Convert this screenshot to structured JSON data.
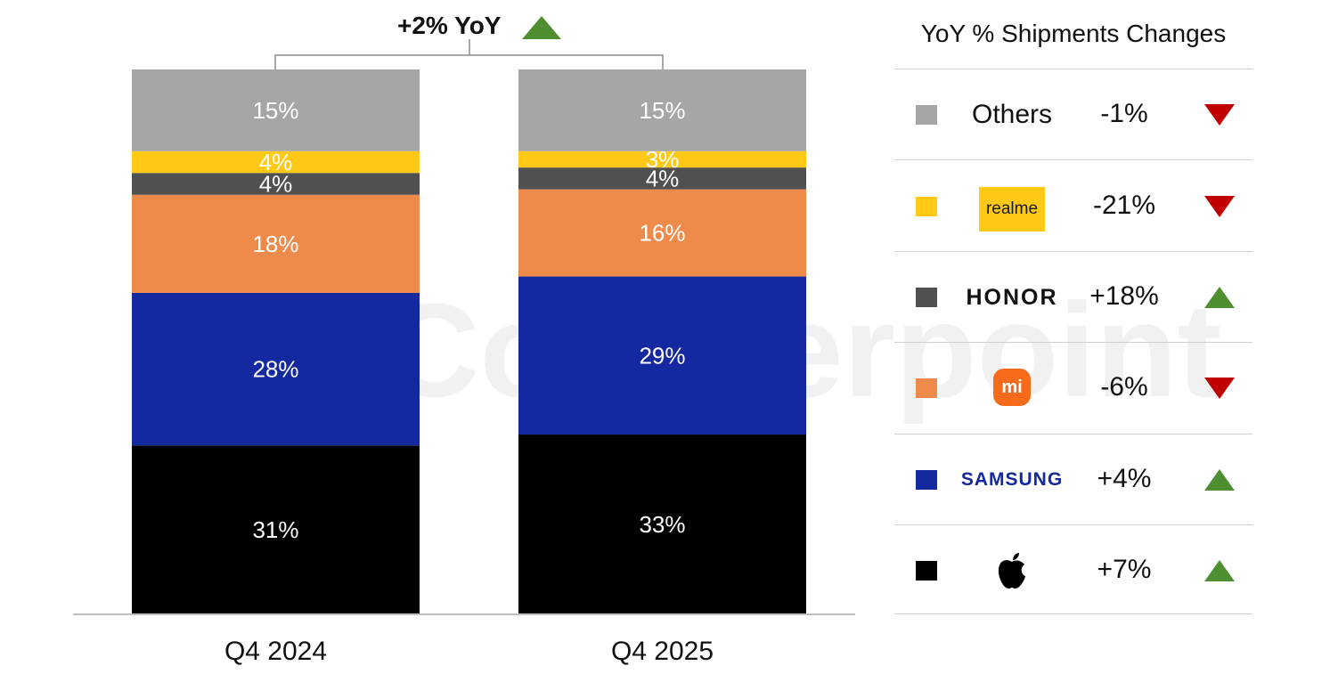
{
  "watermark": "Counterpoint",
  "yoy_total": {
    "text": "+2% YoY",
    "direction": "up"
  },
  "chart_data": {
    "type": "bar",
    "stacked": true,
    "categories": [
      "Q4 2024",
      "Q4 2025"
    ],
    "ylim": [
      0,
      100
    ],
    "series": [
      {
        "key": "apple",
        "values": [
          31,
          33
        ],
        "color": "#000000"
      },
      {
        "key": "samsung",
        "values": [
          28,
          29
        ],
        "color": "#1428A0"
      },
      {
        "key": "xiaomi",
        "values": [
          18,
          16
        ],
        "color": "#EE8B4B"
      },
      {
        "key": "honor",
        "values": [
          4,
          4
        ],
        "color": "#505050"
      },
      {
        "key": "realme",
        "values": [
          4,
          3
        ],
        "color": "#FFC915"
      },
      {
        "name": "Others",
        "values": [
          15,
          15
        ],
        "color": "#A6A6A6"
      }
    ],
    "labels": [
      [
        "31%",
        "28%",
        "18%",
        "4%",
        "4%",
        "15%"
      ],
      [
        "33%",
        "29%",
        "16%",
        "4%",
        "3%",
        "15%"
      ]
    ],
    "grid": false
  },
  "legend": {
    "title": "YoY % Shipments Changes",
    "rows": [
      {
        "brand": "Others",
        "logo": "text",
        "change": "-1%",
        "direction": "down",
        "color": "#A6A6A6"
      },
      {
        "brand": "realme",
        "logo": "realme-logo",
        "change": "-21%",
        "direction": "down",
        "color": "#FFC915"
      },
      {
        "brand": "HONOR",
        "logo": "honor-logo",
        "change": "+18%",
        "direction": "up",
        "color": "#505050"
      },
      {
        "brand": "mi",
        "logo": "xiaomi-logo",
        "change": "-6%",
        "direction": "down",
        "color": "#EE8B4B"
      },
      {
        "brand": "SAMSUNG",
        "logo": "samsung-logo",
        "change": "+4%",
        "direction": "up",
        "color": "#1428A0"
      },
      {
        "brand": "",
        "logo": "apple-logo",
        "change": "+7%",
        "direction": "up",
        "color": "#000000"
      }
    ]
  },
  "colors": {
    "up": "#4E8F32",
    "down": "#C00000",
    "axis": "#BFBFBF",
    "bracket": "#8C8C8C"
  }
}
